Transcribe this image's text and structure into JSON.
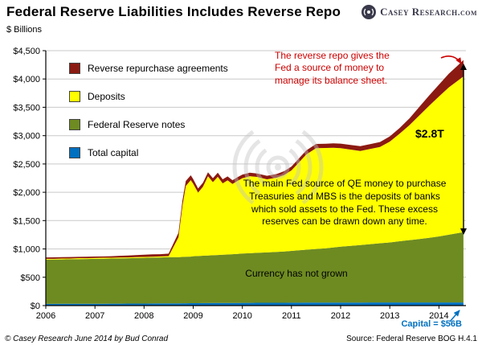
{
  "header": {
    "brand": {
      "main": "Casey Research",
      "suffix": ".com",
      "icon": "concentric-arcs-icon"
    }
  },
  "chart_data": {
    "type": "area",
    "stacked": true,
    "title": "Federal Reserve Liabilities Includes Reverse Repo",
    "unit_label": "$ Billions",
    "xlim": [
      2006,
      2014.55
    ],
    "ylim": [
      0,
      4500
    ],
    "grid": "horizontal",
    "legend_position": "upper-left",
    "x_ticks": [
      2006,
      2007,
      2008,
      2009,
      2010,
      2011,
      2012,
      2013,
      2014
    ],
    "x_tick_labels": [
      "2006",
      "2007",
      "2008",
      "2009",
      "2010",
      "2011",
      "2012",
      "2013",
      "2014"
    ],
    "y_ticks": [
      0,
      500,
      1000,
      1500,
      2000,
      2500,
      3000,
      3500,
      4000,
      4500
    ],
    "y_tick_labels": [
      "$0",
      "$500",
      "$1,000",
      "$1,500",
      "$2,000",
      "$2,500",
      "$3,000",
      "$3,500",
      "$4,000",
      "$4,500"
    ],
    "legend_order": [
      "Reverse repurchase agreements",
      "Deposits",
      "Federal Reserve notes",
      "Total capital"
    ],
    "x": [
      2006.0,
      2006.17,
      2006.33,
      2006.5,
      2006.67,
      2006.83,
      2007.0,
      2007.17,
      2007.33,
      2007.5,
      2007.67,
      2007.83,
      2008.0,
      2008.17,
      2008.33,
      2008.5,
      2008.7,
      2008.78,
      2008.85,
      2008.95,
      2009.0,
      2009.1,
      2009.2,
      2009.3,
      2009.4,
      2009.5,
      2009.6,
      2009.7,
      2009.8,
      2009.9,
      2010.0,
      2010.15,
      2010.3,
      2010.5,
      2010.7,
      2010.85,
      2011.0,
      2011.15,
      2011.3,
      2011.5,
      2011.7,
      2011.85,
      2012.0,
      2012.2,
      2012.4,
      2012.6,
      2012.8,
      2013.0,
      2013.2,
      2013.4,
      2013.6,
      2013.8,
      2014.0,
      2014.2,
      2014.4,
      2014.5
    ],
    "series": [
      {
        "name": "Total capital",
        "color": "#0070C0",
        "values": [
          30,
          30,
          31,
          31,
          32,
          32,
          33,
          33,
          34,
          34,
          35,
          35,
          36,
          37,
          38,
          39,
          40,
          41,
          41,
          42,
          43,
          43,
          44,
          44,
          45,
          45,
          46,
          46,
          47,
          47,
          48,
          48,
          49,
          49,
          50,
          50,
          51,
          51,
          52,
          52,
          52,
          53,
          54,
          54,
          54,
          55,
          55,
          55,
          55,
          55,
          56,
          56,
          56,
          56,
          56,
          56
        ]
      },
      {
        "name": "Federal Reserve notes",
        "color": "#6E8B22",
        "values": [
          780,
          782,
          784,
          786,
          788,
          790,
          792,
          794,
          796,
          798,
          801,
          804,
          807,
          810,
          812,
          814,
          816,
          818,
          820,
          822,
          828,
          832,
          836,
          840,
          844,
          848,
          852,
          856,
          860,
          864,
          870,
          876,
          882,
          890,
          898,
          906,
          915,
          925,
          935,
          948,
          960,
          972,
          985,
          1000,
          1015,
          1030,
          1045,
          1060,
          1080,
          1100,
          1120,
          1140,
          1165,
          1195,
          1225,
          1240
        ]
      },
      {
        "name": "Deposits",
        "color": "#FFFF00",
        "values": [
          15,
          13,
          16,
          14,
          17,
          14,
          15,
          17,
          14,
          16,
          15,
          17,
          16,
          15,
          17,
          20,
          350,
          900,
          1250,
          1350,
          1280,
          1120,
          1220,
          1400,
          1290,
          1380,
          1260,
          1310,
          1240,
          1290,
          1330,
          1360,
          1340,
          1290,
          1310,
          1350,
          1420,
          1550,
          1680,
          1780,
          1770,
          1760,
          1740,
          1700,
          1660,
          1680,
          1700,
          1780,
          1900,
          2030,
          2180,
          2330,
          2470,
          2600,
          2700,
          2750
        ]
      },
      {
        "name": "Reverse repurchase agreements",
        "color": "#8B1A12",
        "values": [
          25,
          27,
          24,
          26,
          23,
          27,
          26,
          24,
          28,
          30,
          33,
          36,
          40,
          42,
          40,
          44,
          80,
          95,
          90,
          85,
          80,
          72,
          70,
          68,
          70,
          72,
          70,
          68,
          66,
          65,
          64,
          62,
          60,
          62,
          64,
          66,
          68,
          70,
          72,
          74,
          76,
          78,
          80,
          82,
          84,
          86,
          88,
          92,
          100,
          120,
          150,
          180,
          210,
          240,
          270,
          290
        ]
      }
    ]
  },
  "annotations": {
    "reverse_repo_note": "The reverse repo gives the\nFed a source of money to\nmanage its balance sheet.",
    "total_value": "$2.8T",
    "qe_note": "The main Fed source of QE money to purchase\nTreasuries and MBS is the deposits of banks\nwhich sold assets to the Fed. These excess\nreserves can be drawn down any time.",
    "currency_note": "Currency has not grown",
    "capital_note": "Capital = $56B"
  },
  "footer": {
    "copyright": "© Casey Research June 2014 by Bud Conrad",
    "source": "Source: Federal Reserve BOG H.4.1"
  }
}
